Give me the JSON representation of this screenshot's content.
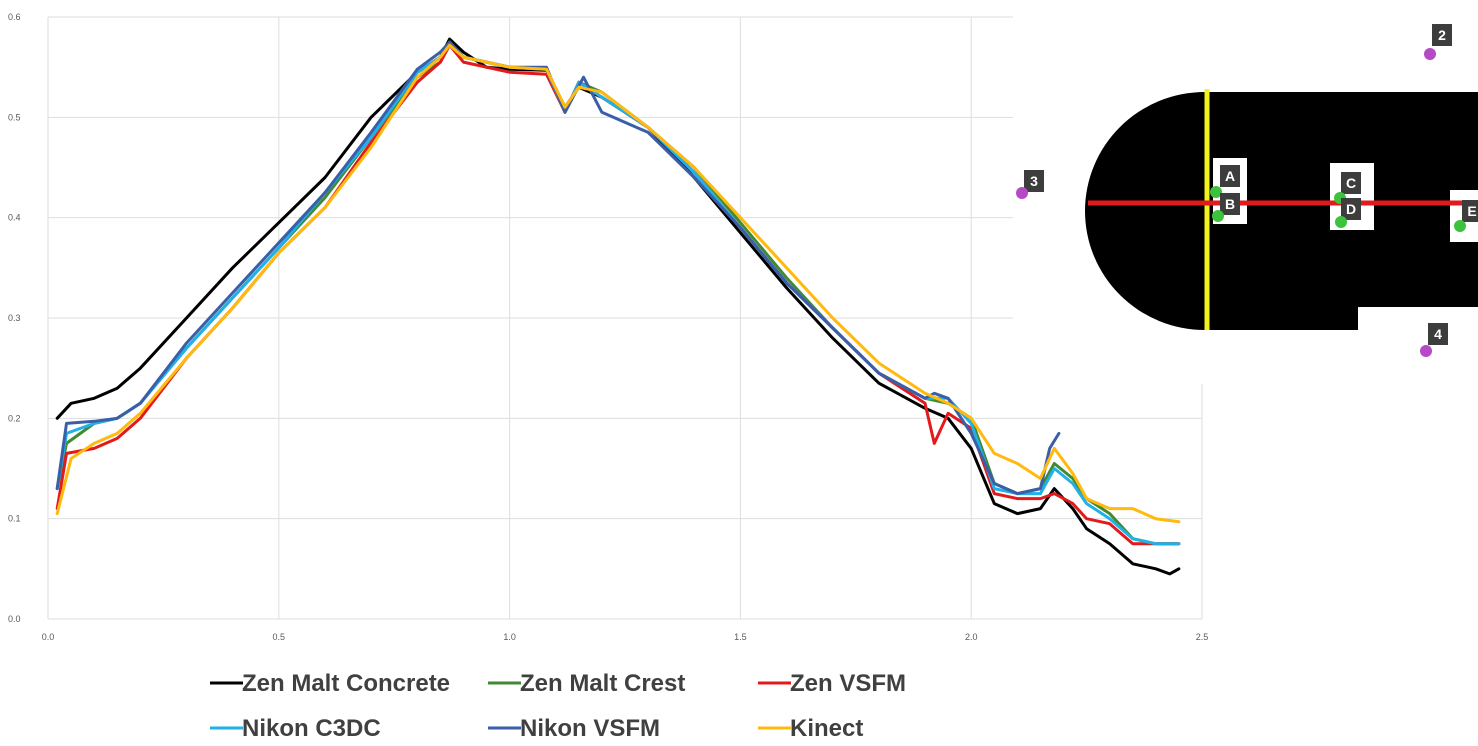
{
  "chart_data": {
    "type": "line",
    "title": "",
    "xlabel": "",
    "ylabel": "",
    "xlim": [
      0,
      2.5
    ],
    "ylim": [
      0,
      0.6
    ],
    "x_ticks": [
      "0.0",
      "0.5",
      "1.0",
      "1.5",
      "2.0",
      "2.5"
    ],
    "y_ticks": [
      "0.0",
      "0.1",
      "0.2",
      "0.3",
      "0.4",
      "0.5",
      "0.6"
    ],
    "grid": true,
    "legend_position": "bottom",
    "series": [
      {
        "name": "Zen Malt Concrete",
        "color": "#000000",
        "points": [
          [
            0.02,
            0.2
          ],
          [
            0.05,
            0.215
          ],
          [
            0.1,
            0.22
          ],
          [
            0.15,
            0.23
          ],
          [
            0.2,
            0.25
          ],
          [
            0.3,
            0.3
          ],
          [
            0.4,
            0.35
          ],
          [
            0.5,
            0.395
          ],
          [
            0.6,
            0.44
          ],
          [
            0.7,
            0.5
          ],
          [
            0.8,
            0.545
          ],
          [
            0.85,
            0.56
          ],
          [
            0.87,
            0.578
          ],
          [
            0.9,
            0.565
          ],
          [
            0.95,
            0.55
          ],
          [
            1.0,
            0.548
          ],
          [
            1.08,
            0.547
          ],
          [
            1.12,
            0.51
          ],
          [
            1.15,
            0.53
          ],
          [
            1.2,
            0.52
          ],
          [
            1.3,
            0.49
          ],
          [
            1.4,
            0.44
          ],
          [
            1.5,
            0.385
          ],
          [
            1.6,
            0.33
          ],
          [
            1.7,
            0.28
          ],
          [
            1.8,
            0.235
          ],
          [
            1.9,
            0.21
          ],
          [
            1.95,
            0.2
          ],
          [
            2.0,
            0.17
          ],
          [
            2.05,
            0.115
          ],
          [
            2.1,
            0.105
          ],
          [
            2.15,
            0.11
          ],
          [
            2.18,
            0.13
          ],
          [
            2.22,
            0.11
          ],
          [
            2.25,
            0.09
          ],
          [
            2.3,
            0.075
          ],
          [
            2.35,
            0.055
          ],
          [
            2.4,
            0.05
          ],
          [
            2.43,
            0.045
          ],
          [
            2.45,
            0.05
          ]
        ]
      },
      {
        "name": "Zen Malt Crest",
        "color": "#3f8a33",
        "points": [
          [
            0.02,
            0.13
          ],
          [
            0.04,
            0.175
          ],
          [
            0.1,
            0.195
          ],
          [
            0.15,
            0.2
          ],
          [
            0.2,
            0.215
          ],
          [
            0.3,
            0.27
          ],
          [
            0.4,
            0.32
          ],
          [
            0.5,
            0.37
          ],
          [
            0.6,
            0.42
          ],
          [
            0.7,
            0.48
          ],
          [
            0.8,
            0.54
          ],
          [
            0.85,
            0.555
          ],
          [
            0.87,
            0.575
          ],
          [
            0.9,
            0.56
          ],
          [
            1.0,
            0.55
          ],
          [
            1.08,
            0.548
          ],
          [
            1.12,
            0.505
          ],
          [
            1.15,
            0.535
          ],
          [
            1.2,
            0.525
          ],
          [
            1.3,
            0.49
          ],
          [
            1.4,
            0.45
          ],
          [
            1.5,
            0.395
          ],
          [
            1.6,
            0.34
          ],
          [
            1.7,
            0.29
          ],
          [
            1.8,
            0.245
          ],
          [
            1.9,
            0.22
          ],
          [
            1.95,
            0.215
          ],
          [
            2.0,
            0.2
          ],
          [
            2.05,
            0.135
          ],
          [
            2.1,
            0.125
          ],
          [
            2.15,
            0.13
          ],
          [
            2.18,
            0.155
          ],
          [
            2.22,
            0.14
          ],
          [
            2.25,
            0.12
          ],
          [
            2.3,
            0.105
          ],
          [
            2.35,
            0.08
          ],
          [
            2.4,
            0.075
          ],
          [
            2.45,
            0.075
          ]
        ]
      },
      {
        "name": "Zen VSFM",
        "color": "#e31a1c",
        "points": [
          [
            0.02,
            0.11
          ],
          [
            0.04,
            0.165
          ],
          [
            0.1,
            0.17
          ],
          [
            0.15,
            0.18
          ],
          [
            0.2,
            0.2
          ],
          [
            0.3,
            0.26
          ],
          [
            0.4,
            0.31
          ],
          [
            0.5,
            0.365
          ],
          [
            0.6,
            0.41
          ],
          [
            0.7,
            0.475
          ],
          [
            0.8,
            0.535
          ],
          [
            0.85,
            0.555
          ],
          [
            0.87,
            0.572
          ],
          [
            0.9,
            0.555
          ],
          [
            1.0,
            0.545
          ],
          [
            1.08,
            0.543
          ],
          [
            1.12,
            0.505
          ],
          [
            1.15,
            0.535
          ],
          [
            1.2,
            0.52
          ],
          [
            1.3,
            0.49
          ],
          [
            1.4,
            0.445
          ],
          [
            1.5,
            0.39
          ],
          [
            1.6,
            0.335
          ],
          [
            1.7,
            0.29
          ],
          [
            1.8,
            0.245
          ],
          [
            1.9,
            0.215
          ],
          [
            1.92,
            0.175
          ],
          [
            1.95,
            0.205
          ],
          [
            2.0,
            0.19
          ],
          [
            2.05,
            0.125
          ],
          [
            2.1,
            0.12
          ],
          [
            2.15,
            0.12
          ],
          [
            2.18,
            0.125
          ],
          [
            2.22,
            0.115
          ],
          [
            2.25,
            0.1
          ],
          [
            2.3,
            0.095
          ],
          [
            2.35,
            0.075
          ],
          [
            2.4,
            0.075
          ],
          [
            2.45,
            0.075
          ]
        ]
      },
      {
        "name": "Nikon C3DC",
        "color": "#1fb1e8",
        "points": [
          [
            0.02,
            0.13
          ],
          [
            0.04,
            0.185
          ],
          [
            0.1,
            0.195
          ],
          [
            0.15,
            0.2
          ],
          [
            0.2,
            0.215
          ],
          [
            0.3,
            0.27
          ],
          [
            0.4,
            0.32
          ],
          [
            0.5,
            0.37
          ],
          [
            0.6,
            0.425
          ],
          [
            0.7,
            0.48
          ],
          [
            0.8,
            0.545
          ],
          [
            0.85,
            0.56
          ],
          [
            0.87,
            0.575
          ],
          [
            0.9,
            0.56
          ],
          [
            1.0,
            0.55
          ],
          [
            1.08,
            0.548
          ],
          [
            1.12,
            0.505
          ],
          [
            1.15,
            0.535
          ],
          [
            1.2,
            0.52
          ],
          [
            1.3,
            0.49
          ],
          [
            1.4,
            0.445
          ],
          [
            1.5,
            0.39
          ],
          [
            1.6,
            0.335
          ],
          [
            1.7,
            0.29
          ],
          [
            1.8,
            0.245
          ],
          [
            1.9,
            0.22
          ],
          [
            1.95,
            0.22
          ],
          [
            2.0,
            0.195
          ],
          [
            2.05,
            0.13
          ],
          [
            2.1,
            0.125
          ],
          [
            2.15,
            0.125
          ],
          [
            2.18,
            0.15
          ],
          [
            2.22,
            0.135
          ],
          [
            2.25,
            0.115
          ],
          [
            2.3,
            0.1
          ],
          [
            2.35,
            0.08
          ],
          [
            2.4,
            0.075
          ],
          [
            2.45,
            0.075
          ]
        ]
      },
      {
        "name": "Nikon VSFM",
        "color": "#3a5fa8",
        "points": [
          [
            0.02,
            0.13
          ],
          [
            0.04,
            0.195
          ],
          [
            0.1,
            0.197
          ],
          [
            0.15,
            0.2
          ],
          [
            0.2,
            0.215
          ],
          [
            0.3,
            0.275
          ],
          [
            0.4,
            0.325
          ],
          [
            0.5,
            0.375
          ],
          [
            0.6,
            0.425
          ],
          [
            0.7,
            0.485
          ],
          [
            0.8,
            0.548
          ],
          [
            0.85,
            0.565
          ],
          [
            0.87,
            0.575
          ],
          [
            0.9,
            0.56
          ],
          [
            1.0,
            0.55
          ],
          [
            1.08,
            0.55
          ],
          [
            1.12,
            0.505
          ],
          [
            1.16,
            0.54
          ],
          [
            1.2,
            0.505
          ],
          [
            1.3,
            0.485
          ],
          [
            1.4,
            0.44
          ],
          [
            1.5,
            0.39
          ],
          [
            1.6,
            0.335
          ],
          [
            1.7,
            0.29
          ],
          [
            1.8,
            0.245
          ],
          [
            1.9,
            0.22
          ],
          [
            1.92,
            0.225
          ],
          [
            1.95,
            0.22
          ],
          [
            2.0,
            0.185
          ],
          [
            2.05,
            0.135
          ],
          [
            2.1,
            0.125
          ],
          [
            2.15,
            0.13
          ],
          [
            2.17,
            0.17
          ],
          [
            2.19,
            0.185
          ]
        ]
      },
      {
        "name": "Kinect",
        "color": "#ffb90f",
        "points": [
          [
            0.02,
            0.105
          ],
          [
            0.05,
            0.16
          ],
          [
            0.1,
            0.175
          ],
          [
            0.15,
            0.185
          ],
          [
            0.2,
            0.205
          ],
          [
            0.3,
            0.26
          ],
          [
            0.4,
            0.31
          ],
          [
            0.5,
            0.365
          ],
          [
            0.6,
            0.41
          ],
          [
            0.7,
            0.47
          ],
          [
            0.8,
            0.54
          ],
          [
            0.85,
            0.56
          ],
          [
            0.87,
            0.572
          ],
          [
            0.9,
            0.56
          ],
          [
            1.0,
            0.55
          ],
          [
            1.08,
            0.548
          ],
          [
            1.12,
            0.51
          ],
          [
            1.15,
            0.53
          ],
          [
            1.2,
            0.525
          ],
          [
            1.3,
            0.49
          ],
          [
            1.4,
            0.45
          ],
          [
            1.5,
            0.4
          ],
          [
            1.6,
            0.35
          ],
          [
            1.7,
            0.3
          ],
          [
            1.8,
            0.255
          ],
          [
            1.9,
            0.225
          ],
          [
            1.95,
            0.215
          ],
          [
            2.0,
            0.2
          ],
          [
            2.05,
            0.165
          ],
          [
            2.1,
            0.155
          ],
          [
            2.15,
            0.14
          ],
          [
            2.18,
            0.17
          ],
          [
            2.22,
            0.145
          ],
          [
            2.25,
            0.12
          ],
          [
            2.3,
            0.11
          ],
          [
            2.35,
            0.11
          ],
          [
            2.4,
            0.1
          ],
          [
            2.45,
            0.097
          ]
        ]
      }
    ]
  },
  "inset": {
    "markers": [
      {
        "label": "2",
        "type": "station",
        "color": "#b44ac4"
      },
      {
        "label": "3",
        "type": "station",
        "color": "#b44ac4"
      },
      {
        "label": "4",
        "type": "station",
        "color": "#b44ac4"
      },
      {
        "label": "A",
        "type": "target",
        "color": "#3cc23c"
      },
      {
        "label": "B",
        "type": "target",
        "color": "#3cc23c"
      },
      {
        "label": "C",
        "type": "target",
        "color": "#3cc23c"
      },
      {
        "label": "D",
        "type": "target",
        "color": "#3cc23c"
      },
      {
        "label": "E",
        "type": "target",
        "color": "#3cc23c"
      }
    ],
    "shape_color": "#000000",
    "profile_line_color": "#e31a1c",
    "section_line_color": "#f2f21d"
  }
}
